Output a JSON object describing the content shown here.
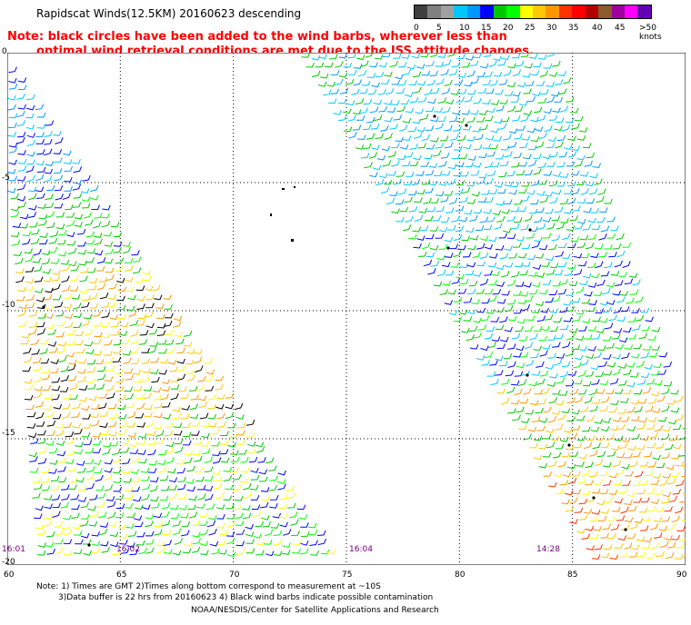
{
  "header": {
    "title": "Rapidscat Winds(12.5KM) 20160623 descending",
    "note_line1": "Note: black circles have been added to the wind barbs, wherever less than",
    "note_line2": "optimal wind retrieval conditions are met due to the ISS attitude changes."
  },
  "legend": {
    "labels": [
      "0",
      "5",
      "10",
      "15",
      "20",
      "25",
      "30",
      "35",
      "40",
      "45",
      ">50 knots"
    ],
    "colors": [
      "#404040",
      "#808080",
      "#a0a0a0",
      "#00c8ff",
      "#0096ff",
      "#0000ff",
      "#00c800",
      "#00ff00",
      "#ffff00",
      "#ffc800",
      "#ff9600",
      "#ff3200",
      "#ff0000",
      "#b40000",
      "#8c5a2d",
      "#a000a0",
      "#ff00ff",
      "#6400b4"
    ]
  },
  "map": {
    "lat_labels": [
      "0",
      "-5",
      "-10",
      "-15",
      "-20"
    ],
    "lon_labels": [
      "60",
      "65",
      "70",
      "75",
      "80",
      "85",
      "90"
    ],
    "pass_times": [
      "16:01",
      "16:02",
      "16:04",
      "14:28"
    ]
  },
  "footer": {
    "line1": "Note: 1) Times are GMT 2)Times along bottom correspond to measurement at ~10S",
    "line2": "3)Data buffer is 22 hrs from 20160623 4) Black wind barbs indicate possible contamination",
    "line3": "NOAA/NESDIS/Center for Satellite Applications and Research"
  }
}
